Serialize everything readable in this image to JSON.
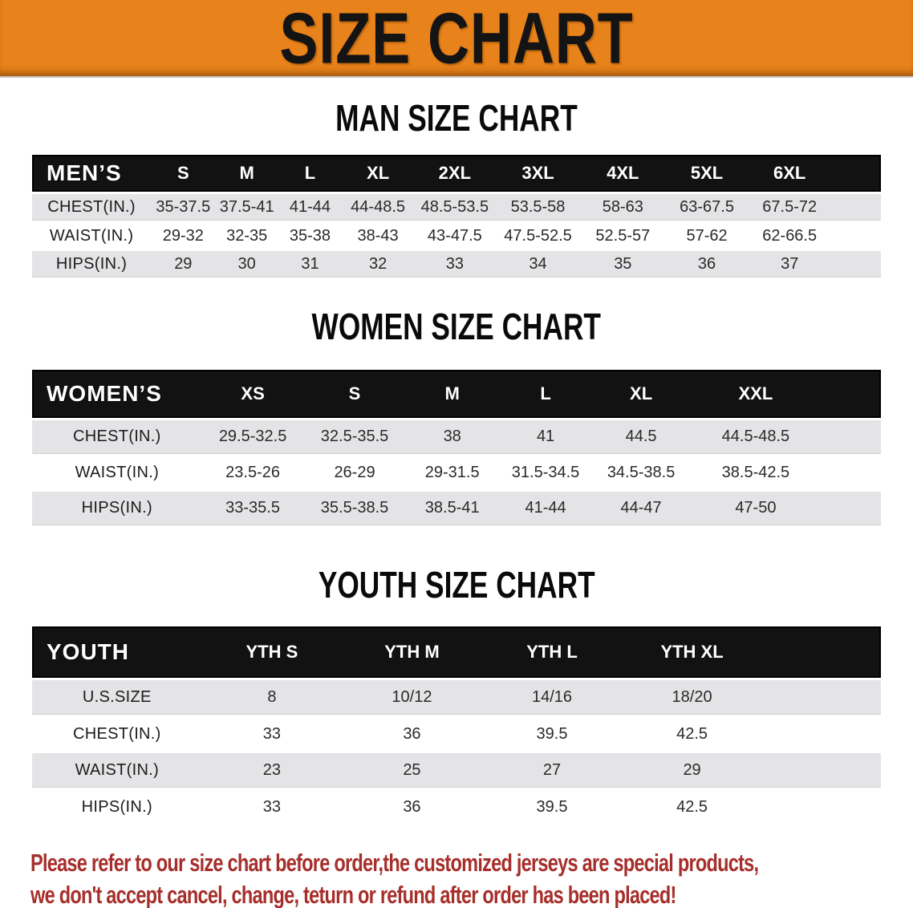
{
  "banner": {
    "title": "SIZE CHART",
    "background_color": "#E8821A",
    "text_color": "#141414"
  },
  "colors": {
    "table_header_bg": "#121212",
    "table_header_text": "#ffffff",
    "row_stripe_gray": "#E4E4E6",
    "row_stripe_white": "#ffffff",
    "disclaimer_red": "#A62F2B"
  },
  "sections": [
    {
      "id": "men",
      "heading": "MAN SIZE CHART",
      "table": {
        "label": "MEN’S",
        "columns": [
          "S",
          "M",
          "L",
          "XL",
          "2XL",
          "3XL",
          "4XL",
          "5XL",
          "6XL"
        ],
        "rows": [
          {
            "label": "CHEST(IN.)",
            "values": [
              "35-37.5",
              "37.5-41",
              "41-44",
              "44-48.5",
              "48.5-53.5",
              "53.5-58",
              "58-63",
              "63-67.5",
              "67.5-72"
            ]
          },
          {
            "label": "WAIST(IN.)",
            "values": [
              "29-32",
              "32-35",
              "35-38",
              "38-43",
              "43-47.5",
              "47.5-52.5",
              "52.5-57",
              "57-62",
              "62-66.5"
            ]
          },
          {
            "label": "HIPS(IN.)",
            "values": [
              "29",
              "30",
              "31",
              "32",
              "33",
              "34",
              "35",
              "36",
              "37"
            ]
          }
        ]
      }
    },
    {
      "id": "women",
      "heading": "WOMEN SIZE CHART",
      "table": {
        "label": "WOMEN’S",
        "columns": [
          "XS",
          "S",
          "M",
          "L",
          "XL",
          "XXL"
        ],
        "rows": [
          {
            "label": "CHEST(IN.)",
            "values": [
              "29.5-32.5",
              "32.5-35.5",
              "38",
              "41",
              "44.5",
              "44.5-48.5"
            ]
          },
          {
            "label": "WAIST(IN.)",
            "values": [
              "23.5-26",
              "26-29",
              "29-31.5",
              "31.5-34.5",
              "34.5-38.5",
              "38.5-42.5"
            ]
          },
          {
            "label": "HIPS(IN.)",
            "values": [
              "33-35.5",
              "35.5-38.5",
              "38.5-41",
              "41-44",
              "44-47",
              "47-50"
            ]
          }
        ]
      }
    },
    {
      "id": "youth",
      "heading": "YOUTH SIZE CHART",
      "table": {
        "label": "YOUTH",
        "columns": [
          "YTH S",
          "YTH M",
          "YTH L",
          "YTH XL"
        ],
        "rows": [
          {
            "label": "U.S.SIZE",
            "values": [
              "8",
              "10/12",
              "14/16",
              "18/20"
            ]
          },
          {
            "label": "CHEST(IN.)",
            "values": [
              "33",
              "36",
              "39.5",
              "42.5"
            ]
          },
          {
            "label": "WAIST(IN.)",
            "values": [
              "23",
              "25",
              "27",
              "29"
            ]
          },
          {
            "label": "HIPS(IN.)",
            "values": [
              "33",
              "36",
              "39.5",
              "42.5"
            ]
          }
        ]
      }
    }
  ],
  "disclaimer": {
    "line1": "Please refer to our size chart before order,the customized jerseys are special products,",
    "line2": "we don't accept cancel, change, teturn or refund after order has been placed!"
  }
}
